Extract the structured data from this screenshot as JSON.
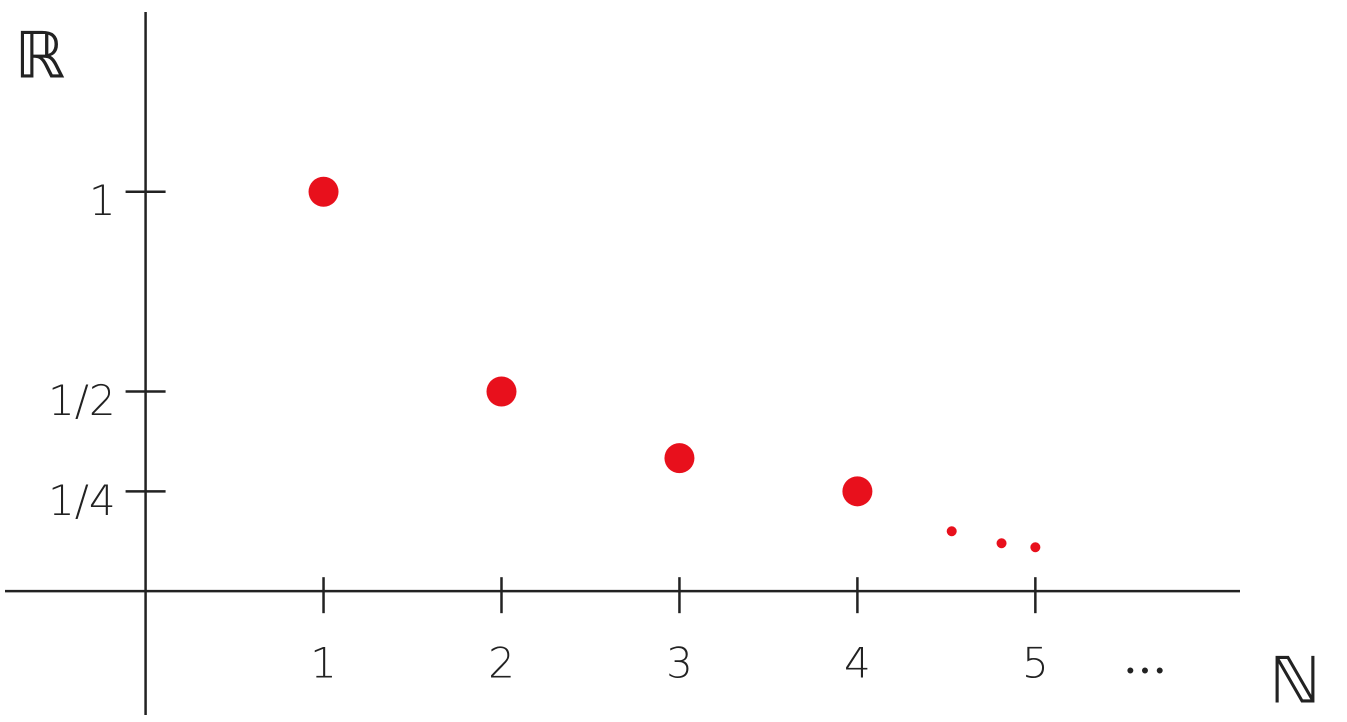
{
  "chart_data": {
    "type": "scatter",
    "x_label": "ℕ",
    "y_label": "ℝ",
    "annotation": "• • •",
    "series": [
      {
        "color": "#e8101c",
        "marker_size": 15,
        "x": [
          1,
          2,
          3,
          4
        ],
        "values": [
          1,
          0.5,
          0.333,
          0.25
        ]
      },
      {
        "color": "#e8101c",
        "marker_size": 5,
        "x": [
          4.53,
          4.81,
          5.0
        ],
        "values": [
          0.15,
          0.12,
          0.11
        ]
      }
    ],
    "xlim": [
      -0.79,
      6.15
    ],
    "ylim": [
      -0.31,
      1.45
    ],
    "xticks": [
      1,
      2,
      3,
      4,
      5
    ],
    "yticks": [
      {
        "value": 0.25,
        "label": "1/4"
      },
      {
        "value": 0.5,
        "label": "1/2"
      },
      1
    ]
  }
}
